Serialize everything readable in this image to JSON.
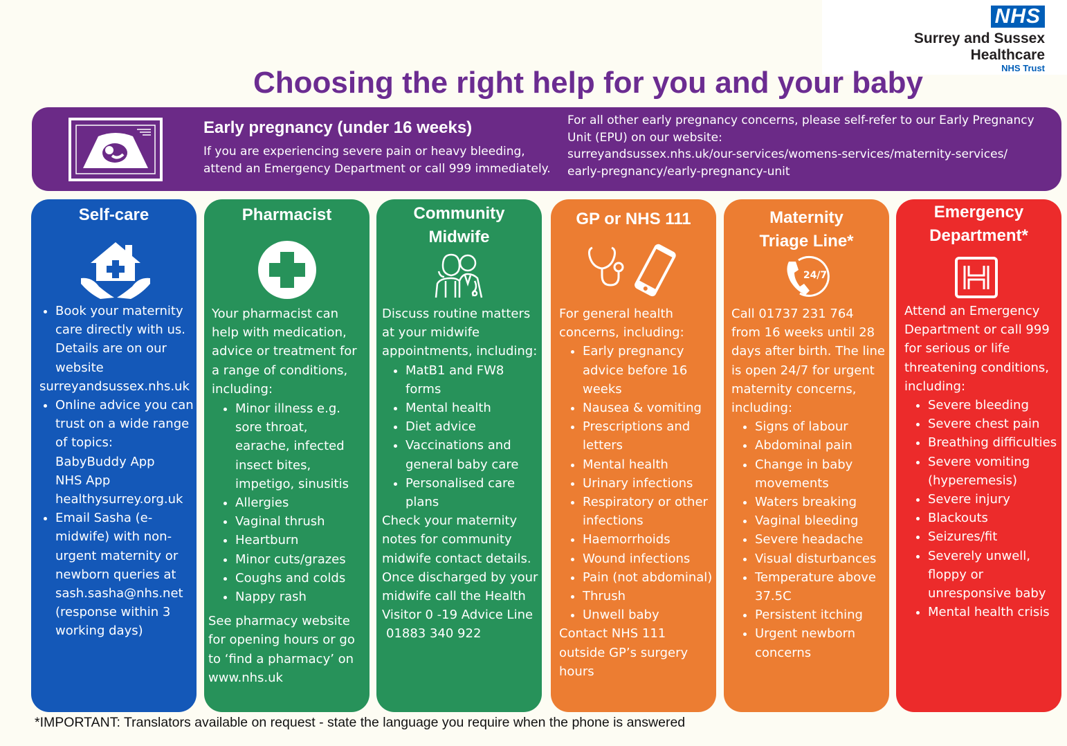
{
  "logo": {
    "nhs": "NHS",
    "line1": "Surrey and Sussex",
    "line2": "Healthcare",
    "line3": "NHS Trust"
  },
  "title": "Choosing the right help for you and your baby",
  "banner": {
    "heading": "Early pregnancy (under 16 weeks)",
    "text": "If you are experiencing severe pain or heavy bleeding, attend an Emergency Department or call 999 immediately.",
    "right_lines": [
      "For all other early pregnancy concerns, please self-refer to our Early Pregnancy",
      "Unit (EPU) on our website:",
      "surreyandsussex.nhs.uk/our-services/womens-services/maternity-services/",
      "early-pregnancy/early-pregnancy-unit"
    ]
  },
  "columns": {
    "selfcare": {
      "title": "Self-care",
      "b1": "Book your maternity care directly with us. Details are on our website",
      "b1_link": "surreyandsussex.nhs.uk",
      "b2": "Online advice you can trust on a wide range of topics:",
      "b2_l1": "BabyBuddy App",
      "b2_l2": "NHS App",
      "b2_l3": "healthysurrey.org.uk",
      "b3": "Email Sasha (e-midwife) with non-urgent maternity or newborn queries at",
      "b3_email": "sash.sasha@nhs.net",
      "b3_note": "(response within 3 working days)"
    },
    "pharmacist": {
      "title": "Pharmacist",
      "intro": "Your pharmacist can help with medication, advice or treatment for a range of conditions, including:",
      "items": [
        "Minor illness e.g. sore throat, earache, infected insect bites, impetigo, sinusitis",
        "Allergies",
        "Vaginal thrush",
        "Heartburn",
        "Minor cuts/grazes",
        "Coughs and colds",
        "Nappy rash"
      ],
      "outro": "See pharmacy website for opening hours or go to ‘find a pharmacy’ on www.nhs.uk"
    },
    "midwife": {
      "title_l1": "Community",
      "title_l2": "Midwife",
      "intro": "Discuss routine matters at your midwife appointments, including:",
      "items": [
        "MatB1 and FW8 forms",
        "Mental health",
        "Diet advice",
        "Vaccinations and general baby care",
        "Personalised care plans"
      ],
      "outro": "Check your maternity notes for community midwife contact details. Once discharged by your midwife call the Health Visitor 0 -19 Advice Line",
      "phone": "01883 340 922"
    },
    "gp": {
      "title": "GP or NHS 111",
      "intro": "For general health concerns, including:",
      "items": [
        "Early pregnancy advice before 16 weeks",
        "Nausea & vomiting",
        "Prescriptions and letters",
        "Mental health",
        "Urinary infections",
        "Respiratory or other infections",
        "Haemorrhoids",
        "Wound infections",
        "Pain (not abdominal)",
        "Thrush",
        "Unwell baby"
      ],
      "outro": "Contact NHS 111 outside GP’s surgery hours"
    },
    "triage": {
      "title_l1": "Maternity",
      "title_l2": "Triage Line*",
      "icon_text": "24/7",
      "intro": "Call 01737 231 764 from 16 weeks until 28 days after birth. The line is open 24/7 for urgent maternity concerns, including:",
      "items": [
        "Signs of labour",
        "Abdominal pain",
        "Change in baby movements",
        "Waters breaking",
        "Vaginal bleeding",
        "Severe headache",
        "Visual disturbances",
        "Temperature above 37.5C",
        "Persistent itching",
        "Urgent newborn concerns"
      ]
    },
    "emergency": {
      "title_l1": "Emergency",
      "title_l2": "Department*",
      "intro": "Attend an Emergency Department or call 999 for serious or life threatening conditions, including:",
      "items": [
        "Severe bleeding",
        "Severe chest pain",
        "Breathing difficulties",
        "Severe vomiting (hyperemesis)",
        "Severe injury",
        "Blackouts",
        "Seizures/fit",
        "Severely unwell, floppy or unresponsive baby",
        "Mental health crisis"
      ]
    }
  },
  "footnote": "*IMPORTANT: Translators available on request - state the language you require when the phone is answered",
  "colors": {
    "purple_title": "#6b2c91",
    "banner": "#6b2a87",
    "selfcare": "#1458b8",
    "green": "#27925a",
    "orange": "#ec7d32",
    "red": "#ec2b2b",
    "nhs_blue": "#005eb8"
  },
  "icons": [
    "ultrasound-scan-icon",
    "house-in-hands-icon",
    "medical-cross-icon",
    "doctor-and-nurse-icon",
    "stethoscope-icon",
    "mobile-phone-icon",
    "phone-24-7-icon",
    "hospital-h-icon"
  ]
}
